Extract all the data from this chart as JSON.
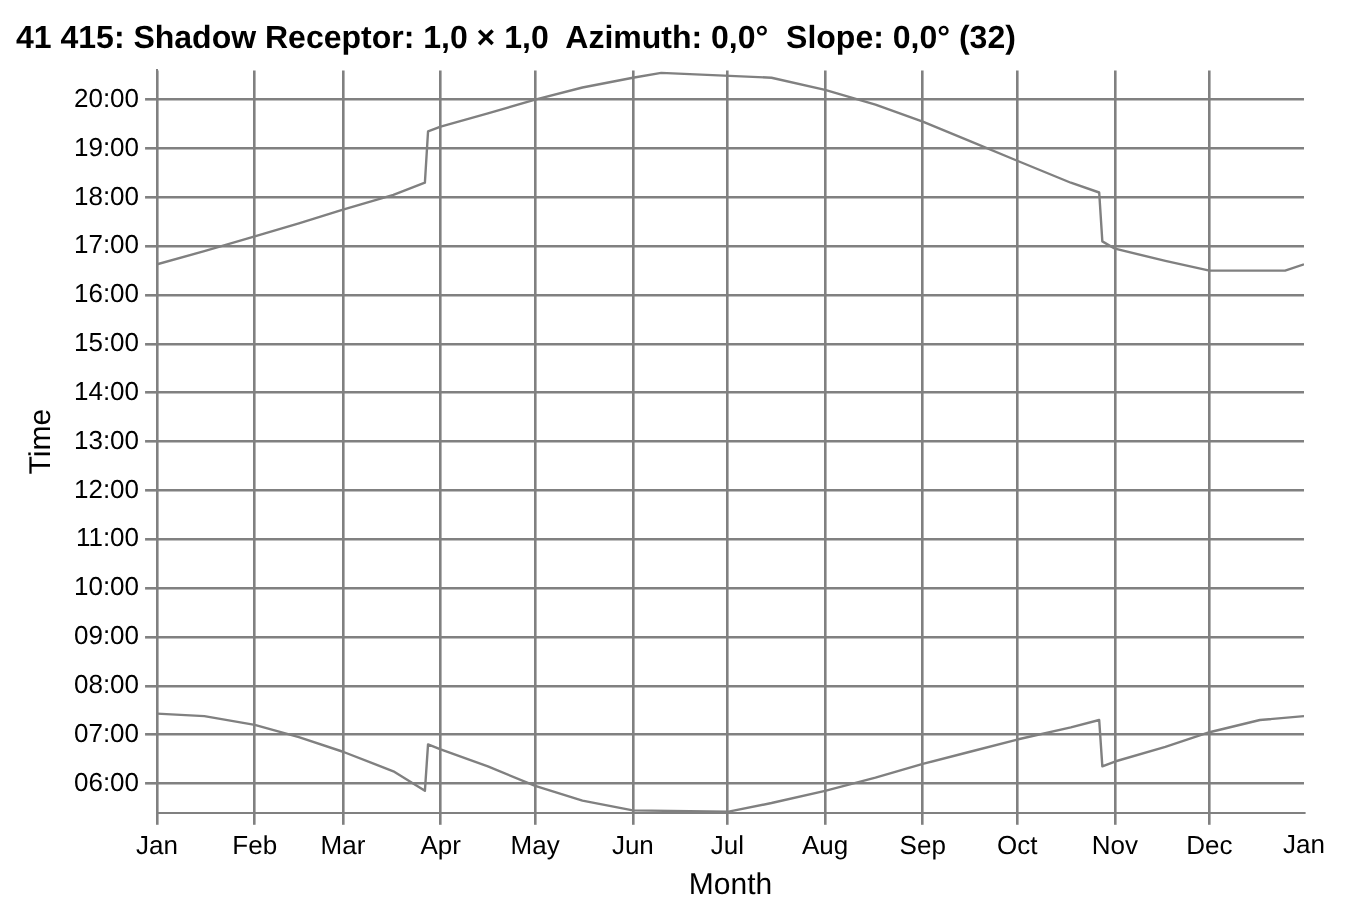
{
  "chart_data": {
    "type": "line",
    "title": "41 415: Shadow Receptor: 1,0 × 1,0  Azimuth: 0,0°  Slope: 0,0° (32)",
    "xlabel": "Month",
    "ylabel": "Time",
    "annotations": [
      "Jan"
    ],
    "xlim": [
      "--01-01",
      "--12-31"
    ],
    "xticks": [
      {
        "value": "--01-01",
        "label": "Jan"
      },
      {
        "value": "--02-01",
        "label": "Feb"
      },
      {
        "value": "--03-01",
        "label": "Mar"
      },
      {
        "value": "--04-01",
        "label": "Apr"
      },
      {
        "value": "--05-01",
        "label": "May"
      },
      {
        "value": "--06-01",
        "label": "Jun"
      },
      {
        "value": "--07-01",
        "label": "Jul"
      },
      {
        "value": "--08-01",
        "label": "Aug"
      },
      {
        "value": "--09-01",
        "label": "Sep"
      },
      {
        "value": "--10-01",
        "label": "Oct"
      },
      {
        "value": "--11-01",
        "label": "Nov"
      },
      {
        "value": "--12-01",
        "label": "Dec"
      }
    ],
    "ylim": [
      5.4,
      20.6
    ],
    "yticks": [
      {
        "value": 6,
        "label": "06:00"
      },
      {
        "value": 7,
        "label": "07:00"
      },
      {
        "value": 8,
        "label": "08:00"
      },
      {
        "value": 9,
        "label": "09:00"
      },
      {
        "value": 10,
        "label": "10:00"
      },
      {
        "value": 11,
        "label": "11:00"
      },
      {
        "value": 12,
        "label": "12:00"
      },
      {
        "value": 13,
        "label": "13:00"
      },
      {
        "value": 14,
        "label": "14:00"
      },
      {
        "value": 15,
        "label": "15:00"
      },
      {
        "value": 16,
        "label": "16:00"
      },
      {
        "value": 17,
        "label": "17:00"
      },
      {
        "value": 18,
        "label": "18:00"
      },
      {
        "value": 19,
        "label": "19:00"
      },
      {
        "value": 20,
        "label": "20:00"
      }
    ],
    "grid": true,
    "legend": false,
    "marker": "none",
    "line_style": "solid",
    "series": [
      {
        "color": "#808080",
        "x": [
          "--01-01",
          "--01-16",
          "--02-01",
          "--02-15",
          "--03-01",
          "--03-17",
          "--03-27",
          "--03-28",
          "--04-01",
          "--04-16",
          "--05-01",
          "--05-16",
          "--06-01",
          "--06-10",
          "--06-22",
          "--07-01",
          "--07-15",
          "--08-01",
          "--08-17",
          "--09-01",
          "--09-16",
          "--10-01",
          "--10-18",
          "--10-27",
          "--10-28",
          "--11-01",
          "--11-17",
          "--12-01",
          "--12-12",
          "--12-25",
          "--12-31"
        ],
        "values": [
          16.63,
          16.9,
          17.2,
          17.47,
          17.75,
          18.05,
          18.3,
          19.35,
          19.45,
          19.72,
          20.0,
          20.25,
          20.45,
          20.55,
          null,
          null,
          20.45,
          20.2,
          19.9,
          19.55,
          19.15,
          18.75,
          18.3,
          18.1,
          17.1,
          16.95,
          16.7,
          16.5,
          16.5,
          16.5,
          16.63
        ]
      },
      {
        "color": "#808080",
        "x": [
          "--01-01",
          "--01-16",
          "--02-01",
          "--02-15",
          "--03-01",
          "--03-17",
          "--03-27",
          "--03-28",
          "--04-01",
          "--04-16",
          "--05-01",
          "--05-16",
          "--06-01",
          "--06-10",
          "--06-22",
          "--07-01",
          "--07-15",
          "--08-01",
          "--08-17",
          "--09-01",
          "--09-16",
          "--10-01",
          "--10-18",
          "--10-27",
          "--10-28",
          "--11-01",
          "--11-17",
          "--12-01",
          "--12-17",
          "--12-31"
        ],
        "values": [
          7.43,
          7.38,
          7.2,
          6.95,
          6.65,
          6.25,
          5.85,
          6.8,
          6.7,
          6.35,
          5.95,
          5.65,
          5.45,
          null,
          null,
          5.42,
          5.6,
          5.85,
          6.12,
          6.4,
          6.65,
          6.9,
          7.15,
          7.3,
          6.35,
          6.45,
          6.75,
          7.05,
          7.3,
          7.38
        ]
      }
    ]
  }
}
